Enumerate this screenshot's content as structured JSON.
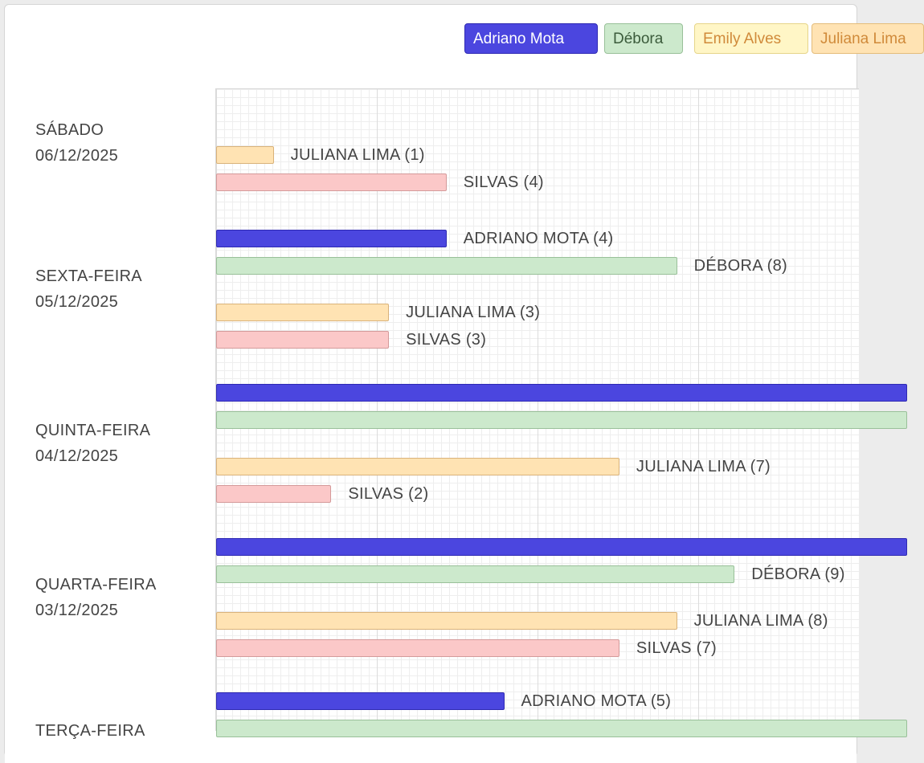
{
  "legend": [
    {
      "name": "Adriano Mota",
      "bg": "#4b46df",
      "border": "#2f2ab3",
      "text": "#ffffff"
    },
    {
      "name": "Débora",
      "bg": "#cce9cc",
      "border": "#99c099",
      "text": "#3b5b3b"
    },
    {
      "name": "Emily Alves",
      "bg": "#fff6c6",
      "border": "#e6d58a",
      "text": "#d08a3a"
    },
    {
      "name": "Juliana Lima",
      "bg": "#ffe3b3",
      "border": "#e4bc7a",
      "text": "#d08a3a"
    }
  ],
  "chart_data": {
    "type": "bar",
    "orientation": "horizontal",
    "grid": true,
    "days": [
      {
        "label_line1": "SÁBADO",
        "label_line2": "06/12/2025",
        "bars": [
          {
            "series": "Juliana Lima",
            "label": "JULIANA LIMA (1)",
            "value": 1,
            "color": "#ffe3b3",
            "border": "#d9b27a"
          },
          {
            "series": "Silvas",
            "label": "SILVAS (4)",
            "value": 4,
            "color": "#fbc8c8",
            "border": "#d49a9a"
          }
        ]
      },
      {
        "label_line1": "SEXTA-FEIRA",
        "label_line2": "05/12/2025",
        "bars": [
          {
            "series": "Adriano Mota",
            "label": "ADRIANO MOTA (4)",
            "value": 4,
            "color": "#4b46df",
            "border": "#2f2ab3"
          },
          {
            "series": "Débora",
            "label": "DÉBORA (8)",
            "value": 8,
            "color": "#cce9cc",
            "border": "#99c099"
          },
          {
            "series": "Juliana Lima",
            "label": "JULIANA LIMA (3)",
            "value": 3,
            "color": "#ffe3b3",
            "border": "#d9b27a"
          },
          {
            "series": "Silvas",
            "label": "SILVAS (3)",
            "value": 3,
            "color": "#fbc8c8",
            "border": "#d49a9a"
          }
        ]
      },
      {
        "label_line1": "QUINTA-FEIRA",
        "label_line2": "04/12/2025",
        "bars": [
          {
            "series": "Adriano Mota",
            "label": "",
            "value": 12,
            "color": "#4b46df",
            "border": "#2f2ab3"
          },
          {
            "series": "Débora",
            "label": "",
            "value": 12,
            "color": "#cce9cc",
            "border": "#99c099"
          },
          {
            "series": "Juliana Lima",
            "label": "JULIANA LIMA (7)",
            "value": 7,
            "color": "#ffe3b3",
            "border": "#d9b27a"
          },
          {
            "series": "Silvas",
            "label": "SILVAS (2)",
            "value": 2,
            "color": "#fbc8c8",
            "border": "#d49a9a"
          }
        ]
      },
      {
        "label_line1": "QUARTA-FEIRA",
        "label_line2": "03/12/2025",
        "bars": [
          {
            "series": "Adriano Mota",
            "label": "",
            "value": 12,
            "color": "#4b46df",
            "border": "#2f2ab3"
          },
          {
            "series": "Débora",
            "label": "DÉBORA (9)",
            "value": 9,
            "color": "#cce9cc",
            "border": "#99c099"
          },
          {
            "series": "Juliana Lima",
            "label": "JULIANA LIMA (8)",
            "value": 8,
            "color": "#ffe3b3",
            "border": "#d9b27a"
          },
          {
            "series": "Silvas",
            "label": "SILVAS (7)",
            "value": 7,
            "color": "#fbc8c8",
            "border": "#d49a9a"
          }
        ]
      },
      {
        "label_line1": "TERÇA-FEIRA",
        "label_line2": "",
        "bars": [
          {
            "series": "Adriano Mota",
            "label": "ADRIANO MOTA (5)",
            "value": 5,
            "color": "#4b46df",
            "border": "#2f2ab3"
          },
          {
            "series": "Débora",
            "label": "",
            "value": 12,
            "color": "#cce9cc",
            "border": "#99c099"
          }
        ]
      }
    ]
  }
}
